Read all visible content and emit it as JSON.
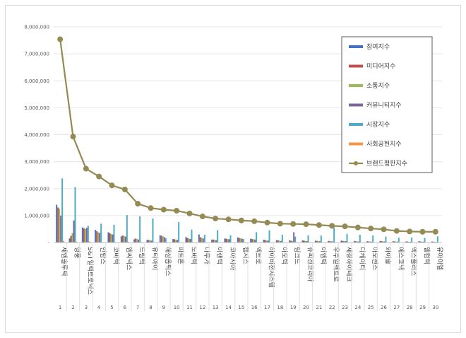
{
  "chart_data": {
    "type": "bar",
    "title": "",
    "xlabel": "",
    "ylabel": "",
    "ylim": [
      0,
      8000000
    ],
    "yticks": [
      0,
      1000000,
      2000000,
      3000000,
      4000000,
      5000000,
      6000000,
      7000000,
      8000000
    ],
    "ytick_labels": [
      "-",
      "1,000,000",
      "2,000,000",
      "3,000,000",
      "4,000,000",
      "5,000,000",
      "6,000,000",
      "7,000,000",
      "8,000,000"
    ],
    "categories": [
      "제엠솔루텍",
      "영풍",
      "S&T일렉트로닉스",
      "인탑스",
      "코바텍",
      "엠씨넥스",
      "드림텍",
      "유티아이",
      "해성옵틱스",
      "파트론",
      "노바텍",
      "나무가",
      "이랜텍",
      "코아시아",
      "캠시스",
      "엑트로",
      "하이비젼시스템",
      "아모텍",
      "링크드",
      "슈피겐코리아",
      "이엠텍",
      "우주일렉트로",
      "세경하이테크",
      "디케이티",
      "아모센스",
      "와이솔",
      "에스코넥",
      "엑스플러스",
      "엘컴텍",
      "유아이엘"
    ],
    "ranks": [
      "1",
      "2",
      "3",
      "4",
      "5",
      "6",
      "7",
      "8",
      "9",
      "10",
      "11",
      "12",
      "13",
      "14",
      "15",
      "16",
      "17",
      "18",
      "19",
      "20",
      "21",
      "22",
      "23",
      "24",
      "25",
      "26",
      "27",
      "28",
      "29",
      "30"
    ],
    "series": [
      {
        "name": "참여지수",
        "kind": "bar",
        "color": "#4472C4",
        "values": [
          1400000,
          150000,
          560000,
          470000,
          380000,
          230000,
          120000,
          100000,
          270000,
          130000,
          200000,
          300000,
          110000,
          150000,
          190000,
          140000,
          100000,
          90000,
          80000,
          80000,
          70000,
          60000,
          70000,
          60000,
          50000,
          60000,
          50000,
          40000,
          50000,
          40000
        ]
      },
      {
        "name": "미디어지수",
        "kind": "bar",
        "color": "#C0504D",
        "values": [
          1300000,
          250000,
          530000,
          420000,
          350000,
          260000,
          150000,
          90000,
          250000,
          120000,
          170000,
          200000,
          110000,
          140000,
          170000,
          130000,
          90000,
          80000,
          70000,
          70000,
          60000,
          50000,
          60000,
          50000,
          40000,
          50000,
          40000,
          40000,
          40000,
          30000
        ]
      },
      {
        "name": "소통지수",
        "kind": "bar",
        "color": "#9BBB59",
        "values": [
          1250000,
          350000,
          500000,
          380000,
          320000,
          240000,
          130000,
          80000,
          230000,
          110000,
          150000,
          180000,
          100000,
          130000,
          160000,
          120000,
          80000,
          70000,
          60000,
          60000,
          50000,
          50000,
          50000,
          40000,
          40000,
          40000,
          40000,
          30000,
          30000,
          30000
        ]
      },
      {
        "name": "커뮤니티지수",
        "kind": "bar",
        "color": "#8064A2",
        "values": [
          1000000,
          820000,
          550000,
          360000,
          300000,
          220000,
          110000,
          70000,
          200000,
          100000,
          130000,
          150000,
          90000,
          120000,
          140000,
          110000,
          70000,
          60000,
          380000,
          50000,
          50000,
          40000,
          50000,
          40000,
          30000,
          40000,
          30000,
          30000,
          30000,
          20000
        ]
      },
      {
        "name": "시장지수",
        "kind": "bar",
        "color": "#4BACC6",
        "values": [
          2380000,
          2060000,
          620000,
          700000,
          660000,
          1020000,
          970000,
          890000,
          160000,
          760000,
          480000,
          290000,
          460000,
          270000,
          130000,
          380000,
          450000,
          290000,
          220000,
          270000,
          260000,
          560000,
          320000,
          290000,
          260000,
          220000,
          180000,
          190000,
          170000,
          230000
        ]
      },
      {
        "name": "사회공헌지수",
        "kind": "bar",
        "color": "#F79646",
        "values": [
          60000,
          30000,
          40000,
          20000,
          20000,
          30000,
          20000,
          10000,
          20000,
          10000,
          20000,
          10000,
          10000,
          10000,
          20000,
          10000,
          10000,
          10000,
          10000,
          10000,
          10000,
          10000,
          10000,
          10000,
          10000,
          10000,
          10000,
          10000,
          10000,
          10000
        ]
      },
      {
        "name": "브랜드평판지수",
        "kind": "line",
        "color": "#948A54",
        "values": [
          7540000,
          3930000,
          2740000,
          2450000,
          2120000,
          1970000,
          1440000,
          1280000,
          1220000,
          1180000,
          1080000,
          970000,
          890000,
          860000,
          820000,
          790000,
          740000,
          700000,
          690000,
          680000,
          650000,
          620000,
          600000,
          560000,
          520000,
          490000,
          430000,
          410000,
          400000,
          400000
        ]
      }
    ]
  }
}
